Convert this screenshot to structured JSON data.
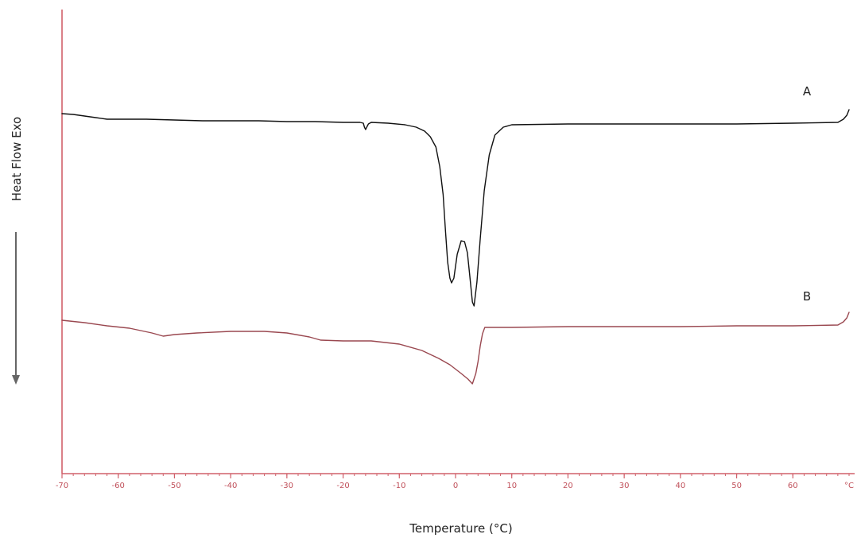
{
  "chart_data": {
    "type": "line",
    "xlabel": "Temperature (°C)",
    "ylabel": "Heat Flow Exo",
    "x_unit_label": "°C",
    "xlim": [
      -70,
      70
    ],
    "x_ticks": [
      -70,
      -60,
      -50,
      -40,
      -30,
      -20,
      -10,
      0,
      10,
      20,
      30,
      40,
      50,
      60
    ],
    "grid": false,
    "legend": "none",
    "axis_color": "#d0606a",
    "series": [
      {
        "name": "A",
        "color": "#111111",
        "points": [
          [
            -70,
            143
          ],
          [
            -68,
            144
          ],
          [
            -66,
            146
          ],
          [
            -64,
            148
          ],
          [
            -62,
            150
          ],
          [
            -60,
            150
          ],
          [
            -55,
            150
          ],
          [
            -50,
            151
          ],
          [
            -45,
            152
          ],
          [
            -40,
            152
          ],
          [
            -35,
            152
          ],
          [
            -30,
            153
          ],
          [
            -25,
            153
          ],
          [
            -20,
            154
          ],
          [
            -17,
            154
          ],
          [
            -16.4,
            155
          ],
          [
            -16.2,
            160
          ],
          [
            -16,
            163
          ],
          [
            -15.8,
            160
          ],
          [
            -15.5,
            156
          ],
          [
            -15,
            154
          ],
          [
            -12,
            155
          ],
          [
            -9,
            157
          ],
          [
            -7,
            160
          ],
          [
            -5.5,
            165
          ],
          [
            -4.5,
            172
          ],
          [
            -3.5,
            185
          ],
          [
            -2.8,
            210
          ],
          [
            -2.2,
            245
          ],
          [
            -1.8,
            290
          ],
          [
            -1.4,
            330
          ],
          [
            -1.0,
            350
          ],
          [
            -0.7,
            356
          ],
          [
            -0.3,
            350
          ],
          [
            0.3,
            320
          ],
          [
            1.0,
            303
          ],
          [
            1.6,
            304
          ],
          [
            2.1,
            318
          ],
          [
            2.5,
            345
          ],
          [
            3.0,
            380
          ],
          [
            3.3,
            385
          ],
          [
            3.8,
            355
          ],
          [
            4.4,
            300
          ],
          [
            5.1,
            240
          ],
          [
            6.0,
            195
          ],
          [
            7.0,
            170
          ],
          [
            8.5,
            160
          ],
          [
            10,
            157
          ],
          [
            20,
            156
          ],
          [
            30,
            156
          ],
          [
            40,
            156
          ],
          [
            50,
            156
          ],
          [
            60,
            155
          ],
          [
            68,
            154
          ],
          [
            69,
            150
          ],
          [
            69.6,
            145
          ],
          [
            70,
            138
          ]
        ]
      },
      {
        "name": "B",
        "color": "#9a4850",
        "points": [
          [
            -70,
            403
          ],
          [
            -66,
            406
          ],
          [
            -62,
            410
          ],
          [
            -58,
            413
          ],
          [
            -54,
            419
          ],
          [
            -52,
            423
          ],
          [
            -50,
            421
          ],
          [
            -46,
            419
          ],
          [
            -40,
            417
          ],
          [
            -34,
            417
          ],
          [
            -30,
            419
          ],
          [
            -26,
            424
          ],
          [
            -24,
            428
          ],
          [
            -20,
            429
          ],
          [
            -15,
            429
          ],
          [
            -10,
            433
          ],
          [
            -6,
            441
          ],
          [
            -3,
            451
          ],
          [
            -1,
            459
          ],
          [
            1,
            470
          ],
          [
            2.2,
            477
          ],
          [
            3.0,
            483
          ],
          [
            3.6,
            470
          ],
          [
            4.0,
            455
          ],
          [
            4.4,
            435
          ],
          [
            4.8,
            420
          ],
          [
            5.2,
            412
          ],
          [
            10,
            412
          ],
          [
            20,
            411
          ],
          [
            30,
            411
          ],
          [
            40,
            411
          ],
          [
            50,
            410
          ],
          [
            60,
            410
          ],
          [
            68,
            409
          ],
          [
            69,
            405
          ],
          [
            69.6,
            400
          ],
          [
            70,
            393
          ]
        ]
      }
    ],
    "annotations": [
      {
        "label": "A",
        "x": 62.5,
        "y": 115
      },
      {
        "label": "B",
        "x": 62.5,
        "y": 373
      }
    ]
  }
}
